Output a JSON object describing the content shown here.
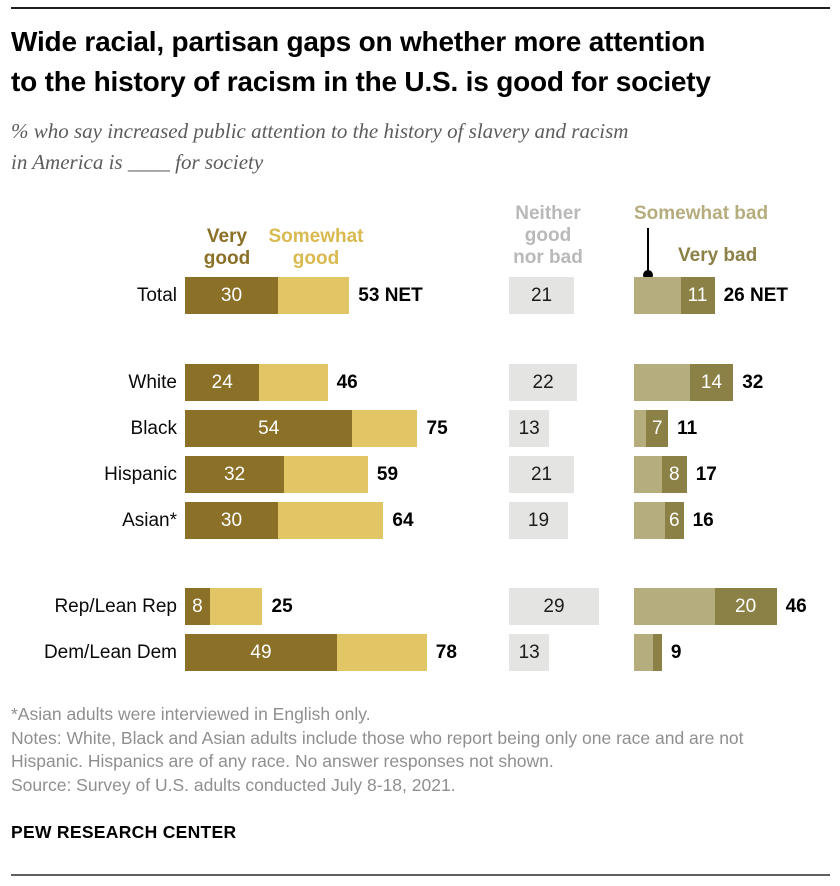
{
  "title_lines": [
    "Wide racial, partisan gaps on whether more attention",
    "to the history of racism in the U.S. is good for society"
  ],
  "subtitle_lines": [
    "% who say increased public attention to the history of slavery and racism",
    "in America is ____ for society"
  ],
  "legend": {
    "very_good": [
      "Very",
      "good"
    ],
    "somewhat_good": [
      "Somewhat",
      "good"
    ],
    "neither": [
      "Neither",
      "good",
      "nor bad"
    ],
    "somewhat_bad": "Somewhat bad",
    "very_bad": "Very bad"
  },
  "colors": {
    "very_good": "#8b7028",
    "somewhat_good": "#e2c565",
    "somewhat_good_label": "#d9ba50",
    "neither_bar": "#e4e4e2",
    "neither_label": "#b9b9b9",
    "somewhat_bad": "#b5ad7e",
    "very_bad": "#8b8045"
  },
  "chart_data": {
    "type": "bar",
    "orientation": "horizontal-stacked",
    "unit": "percent",
    "series_names": [
      "Very good",
      "Somewhat good",
      "Neither good nor bad",
      "Somewhat bad",
      "Very bad"
    ],
    "groups": [
      [
        "Total"
      ],
      [
        "White",
        "Black",
        "Hispanic",
        "Asian*"
      ],
      [
        "Rep/Lean Rep",
        "Dem/Lean Dem"
      ]
    ],
    "rows": [
      {
        "label": "Total",
        "very_good": 30,
        "very_good_text": "30",
        "somewhat_good": 23,
        "net_good": 53,
        "net_good_text": "53 NET",
        "neither": 21,
        "neither_text": "21",
        "somewhat_bad": 15,
        "very_bad": 11,
        "very_bad_text": "11",
        "net_bad": 26,
        "net_bad_text": "26 NET"
      },
      {
        "label": "White",
        "very_good": 24,
        "very_good_text": "24",
        "somewhat_good": 22,
        "net_good": 46,
        "net_good_text": "46",
        "neither": 22,
        "neither_text": "22",
        "somewhat_bad": 18,
        "very_bad": 14,
        "very_bad_text": "14",
        "net_bad": 32,
        "net_bad_text": "32"
      },
      {
        "label": "Black",
        "very_good": 54,
        "very_good_text": "54",
        "somewhat_good": 21,
        "net_good": 75,
        "net_good_text": "75",
        "neither": 13,
        "neither_text": "13",
        "somewhat_bad": 4,
        "very_bad": 7,
        "very_bad_text": "7",
        "net_bad": 11,
        "net_bad_text": "11"
      },
      {
        "label": "Hispanic",
        "very_good": 32,
        "very_good_text": "32",
        "somewhat_good": 27,
        "net_good": 59,
        "net_good_text": "59",
        "neither": 21,
        "neither_text": "21",
        "somewhat_bad": 9,
        "very_bad": 8,
        "very_bad_text": "8",
        "net_bad": 17,
        "net_bad_text": "17"
      },
      {
        "label": "Asian*",
        "very_good": 30,
        "very_good_text": "30",
        "somewhat_good": 34,
        "net_good": 64,
        "net_good_text": "64",
        "neither": 19,
        "neither_text": "19",
        "somewhat_bad": 10,
        "very_bad": 6,
        "very_bad_text": "6",
        "net_bad": 16,
        "net_bad_text": "16"
      },
      {
        "label": "Rep/Lean Rep",
        "very_good": 8,
        "very_good_text": "8",
        "somewhat_good": 17,
        "net_good": 25,
        "net_good_text": "25",
        "neither": 29,
        "neither_text": "29",
        "somewhat_bad": 26,
        "very_bad": 20,
        "very_bad_text": "20",
        "net_bad": 46,
        "net_bad_text": "46"
      },
      {
        "label": "Dem/Lean Dem",
        "very_good": 49,
        "very_good_text": "49",
        "somewhat_good": 29,
        "net_good": 78,
        "net_good_text": "78",
        "neither": 13,
        "neither_text": "13",
        "somewhat_bad": 6,
        "very_bad": 3,
        "very_bad_text": "",
        "net_bad": 9,
        "net_bad_text": "9"
      }
    ]
  },
  "notes": [
    "*Asian adults were interviewed in English only.",
    "Notes: White, Black and Asian adults include those who report being only one race and are not Hispanic. Hispanics are of any race. No answer responses not shown.",
    "Source: Survey of U.S. adults conducted July 8-18, 2021."
  ],
  "footer": "PEW RESEARCH CENTER"
}
